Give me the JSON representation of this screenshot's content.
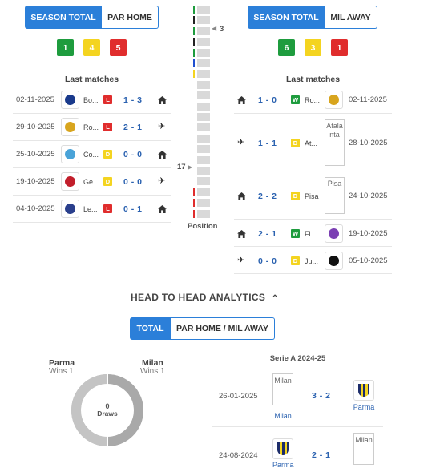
{
  "left_panel": {
    "tabs": [
      {
        "label": "SEASON TOTAL",
        "active": true
      },
      {
        "label": "PAR HOME",
        "active": false
      }
    ],
    "form_badges": [
      {
        "value": "1",
        "color": "#1e9c3e"
      },
      {
        "value": "4",
        "color": "#f4d420"
      },
      {
        "value": "5",
        "color": "#e02d2d"
      }
    ],
    "section_title": "Last matches",
    "matches": [
      {
        "date": "02-11-2025",
        "team": "Bo...",
        "crest_color": "#1a3a8c",
        "result": "L",
        "score": "1 - 3",
        "venue": "home"
      },
      {
        "date": "29-10-2025",
        "team": "Ro...",
        "crest_color": "#d8a51e",
        "result": "L",
        "score": "2 - 1",
        "venue": "away"
      },
      {
        "date": "25-10-2025",
        "team": "Co...",
        "crest_color": "#4aa3d8",
        "result": "D",
        "score": "0 - 0",
        "venue": "home"
      },
      {
        "date": "19-10-2025",
        "team": "Ge...",
        "crest_color": "#c21e2b",
        "result": "D",
        "score": "0 - 0",
        "venue": "away"
      },
      {
        "date": "04-10-2025",
        "team": "Le...",
        "crest_color": "#2a3f8c",
        "result": "L",
        "score": "0 - 1",
        "venue": "home"
      }
    ]
  },
  "position_widget": {
    "top_position": "3",
    "bottom_position": "17",
    "label": "Position",
    "marks": [
      "#1e9c3e",
      "#222222",
      "#1e9c3e",
      "#222222",
      "#1e9c3e",
      "#1f4fd0",
      "#f4d420",
      "",
      "",
      "",
      "",
      "",
      "",
      "",
      "",
      "",
      "",
      "#e02d2d",
      "#e02d2d",
      "#e02d2d"
    ]
  },
  "right_panel": {
    "tabs": [
      {
        "label": "SEASON TOTAL",
        "active": true
      },
      {
        "label": "MIL AWAY",
        "active": false
      }
    ],
    "form_badges": [
      {
        "value": "6",
        "color": "#1e9c3e"
      },
      {
        "value": "3",
        "color": "#f4d420"
      },
      {
        "value": "1",
        "color": "#e02d2d"
      }
    ],
    "section_title": "Last matches",
    "matches": [
      {
        "venue": "home",
        "score": "1 - 0",
        "result": "W",
        "team": "Ro...",
        "crest_text": "",
        "crest_color": "#d8a51e",
        "date": "02-11-2025"
      },
      {
        "venue": "away",
        "score": "1 - 1",
        "result": "D",
        "team": "At...",
        "crest_text": "Atalanta",
        "crest_color": "",
        "date": "28-10-2025"
      },
      {
        "venue": "home",
        "score": "2 - 2",
        "result": "D",
        "team": "Pisa",
        "crest_text": "Pisa",
        "crest_color": "",
        "date": "24-10-2025"
      },
      {
        "venue": "home",
        "score": "2 - 1",
        "result": "W",
        "team": "Fi...",
        "crest_text": "",
        "crest_color": "#7b3fb3",
        "date": "19-10-2025"
      },
      {
        "venue": "away",
        "score": "0 - 0",
        "result": "D",
        "team": "Ju...",
        "crest_text": "",
        "crest_color": "#111111",
        "date": "05-10-2025"
      }
    ]
  },
  "h2h": {
    "title": "HEAD TO HEAD ANALYTICS",
    "tabs": [
      {
        "label": "TOTAL",
        "active": true
      },
      {
        "label": "PAR HOME / MIL AWAY",
        "active": false
      }
    ],
    "home_team": {
      "name": "Parma",
      "wins": "Wins 1"
    },
    "away_team": {
      "name": "Milan",
      "wins": "Wins 1"
    },
    "draws_count": "0",
    "draws_label": "Draws",
    "season_title": "Serie A 2024-25",
    "matches": [
      {
        "date": "26-01-2025",
        "home_name": "Milan",
        "home_crest_text": "Milan",
        "score": "3 - 2",
        "away_name": "Parma",
        "away_crest_text": ""
      },
      {
        "date": "24-08-2024",
        "home_name": "Parma",
        "home_crest_text": "",
        "score": "2 - 1",
        "away_name": "Milan",
        "away_crest_text": "Milan"
      }
    ]
  },
  "colors": {
    "accent": "#2b7fd9",
    "score": "#2b62b0",
    "win": "#1e9c3e",
    "draw": "#f4d420",
    "loss": "#e02d2d"
  }
}
